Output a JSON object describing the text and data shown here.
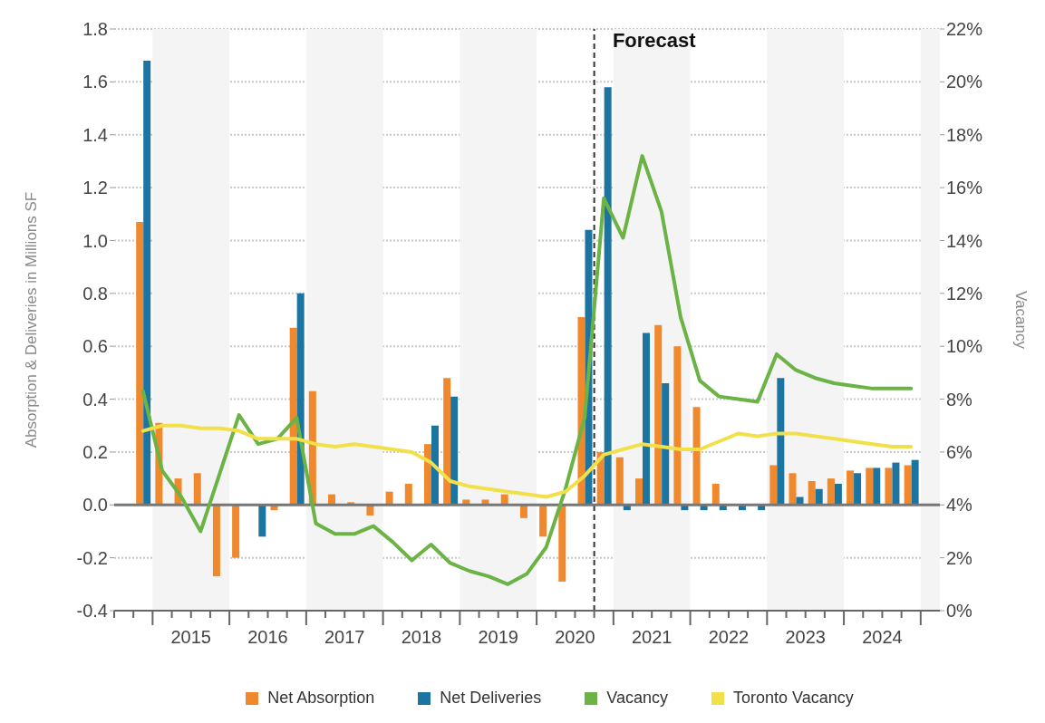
{
  "chart_data": {
    "type": "bar",
    "ylabel": "Absorption & Deliveries in Millions SF",
    "y2label": "Vacancy",
    "x": [
      2014.875,
      2015.125,
      2015.375,
      2015.625,
      2015.875,
      2016.125,
      2016.375,
      2016.625,
      2016.875,
      2017.125,
      2017.375,
      2017.625,
      2017.875,
      2018.125,
      2018.375,
      2018.625,
      2018.875,
      2019.125,
      2019.375,
      2019.625,
      2019.875,
      2020.125,
      2020.375,
      2020.625,
      2020.875,
      2021.125,
      2021.375,
      2021.625,
      2021.875,
      2022.125,
      2022.375,
      2022.625,
      2022.875,
      2023.125,
      2023.375,
      2023.625,
      2023.875,
      2024.125,
      2024.375,
      2024.625,
      2024.875
    ],
    "series": [
      {
        "name": "Net Absorption",
        "color": "#f0892e",
        "values": [
          1.07,
          0.31,
          0.1,
          0.12,
          -0.27,
          -0.2,
          0.0,
          -0.02,
          0.67,
          0.43,
          0.04,
          0.01,
          -0.04,
          0.05,
          0.08,
          0.23,
          0.48,
          0.02,
          0.02,
          0.04,
          -0.05,
          -0.12,
          -0.29,
          0.71,
          0.2,
          0.18,
          0.1,
          0.68,
          0.6,
          0.37,
          0.08,
          0.0,
          0.0,
          0.15,
          0.12,
          0.09,
          0.1,
          0.13,
          0.14,
          0.14,
          0.15
        ]
      },
      {
        "name": "Net Deliveries",
        "color": "#1b75a0",
        "values": [
          1.68,
          0,
          0,
          0,
          0,
          0,
          -0.12,
          0,
          0.8,
          0,
          0,
          0,
          0,
          0,
          0,
          0.3,
          0.41,
          0,
          0,
          0,
          0,
          0,
          0,
          1.04,
          1.58,
          -0.02,
          0.65,
          0.46,
          -0.02,
          -0.02,
          -0.02,
          -0.02,
          -0.02,
          0.48,
          0.03,
          0.06,
          0.08,
          0.12,
          0.14,
          0.16,
          0.17
        ]
      },
      {
        "name": "Vacancy",
        "type": "line",
        "axis": "y2",
        "color": "#6ab344",
        "values": [
          8.3,
          5.3,
          4.3,
          3.0,
          5.2,
          7.4,
          6.3,
          6.5,
          7.3,
          3.3,
          2.9,
          2.9,
          3.2,
          2.6,
          1.9,
          2.5,
          1.8,
          1.5,
          1.3,
          1.0,
          1.4,
          2.4,
          4.6,
          7.3,
          15.6,
          14.1,
          17.2,
          15.1,
          11.1,
          8.7,
          8.1,
          8.0,
          7.9,
          9.7,
          9.1,
          8.8,
          8.6,
          8.5,
          8.4,
          8.4,
          8.4
        ]
      },
      {
        "name": "Toronto Vacancy",
        "type": "line",
        "axis": "y2",
        "color": "#f2e04a",
        "values": [
          6.8,
          7.0,
          7.0,
          6.9,
          6.9,
          6.8,
          6.5,
          6.5,
          6.5,
          6.3,
          6.2,
          6.3,
          6.2,
          6.1,
          6.0,
          5.6,
          4.9,
          4.7,
          4.6,
          4.5,
          4.4,
          4.3,
          4.5,
          5.1,
          5.9,
          6.1,
          6.3,
          6.2,
          6.1,
          6.1,
          6.4,
          6.7,
          6.6,
          6.7,
          6.7,
          6.6,
          6.5,
          6.4,
          6.3,
          6.2,
          6.2
        ]
      }
    ],
    "xlim": [
      2014.5,
      2025.25
    ],
    "xticks": [
      {
        "value": 2014.5,
        "label": null
      },
      {
        "value": 2014.75,
        "label": null
      },
      {
        "value": 2015,
        "label": null
      },
      {
        "value": 2015.25,
        "label": null
      },
      {
        "value": 2015.5,
        "label": "2015"
      },
      {
        "value": 2015.75,
        "label": null
      },
      {
        "value": 2016,
        "label": null
      },
      {
        "value": 2016.25,
        "label": null
      },
      {
        "value": 2016.5,
        "label": "2016"
      },
      {
        "value": 2016.75,
        "label": null
      },
      {
        "value": 2017,
        "label": null
      },
      {
        "value": 2017.25,
        "label": null
      },
      {
        "value": 2017.5,
        "label": "2017"
      },
      {
        "value": 2017.75,
        "label": null
      },
      {
        "value": 2018,
        "label": null
      },
      {
        "value": 2018.25,
        "label": null
      },
      {
        "value": 2018.5,
        "label": "2018"
      },
      {
        "value": 2018.75,
        "label": null
      },
      {
        "value": 2019,
        "label": null
      },
      {
        "value": 2019.25,
        "label": null
      },
      {
        "value": 2019.5,
        "label": "2019"
      },
      {
        "value": 2019.75,
        "label": null
      },
      {
        "value": 2020,
        "label": null
      },
      {
        "value": 2020.25,
        "label": null
      },
      {
        "value": 2020.5,
        "label": "2020"
      },
      {
        "value": 2020.75,
        "label": null
      },
      {
        "value": 2021,
        "label": null
      },
      {
        "value": 2021.25,
        "label": null
      },
      {
        "value": 2021.5,
        "label": "2021"
      },
      {
        "value": 2021.75,
        "label": null
      },
      {
        "value": 2022,
        "label": null
      },
      {
        "value": 2022.25,
        "label": null
      },
      {
        "value": 2022.5,
        "label": "2022"
      },
      {
        "value": 2022.75,
        "label": null
      },
      {
        "value": 2023,
        "label": null
      },
      {
        "value": 2023.25,
        "label": null
      },
      {
        "value": 2023.5,
        "label": "2023"
      },
      {
        "value": 2023.75,
        "label": null
      },
      {
        "value": 2024,
        "label": null
      },
      {
        "value": 2024.25,
        "label": null
      },
      {
        "value": 2024.5,
        "label": "2024"
      },
      {
        "value": 2024.75,
        "label": null
      },
      {
        "value": 2025,
        "label": null
      }
    ],
    "ylim": [
      -0.4,
      1.8
    ],
    "yticks": [
      -0.4,
      -0.2,
      {
        "value": 0,
        "label": "0.0"
      },
      0.2,
      0.4,
      0.6,
      0.8,
      {
        "value": 1,
        "label": "1.0"
      },
      1.2,
      1.4,
      1.6,
      1.8
    ],
    "y2lim": [
      0,
      22
    ],
    "y2ticks": [
      {
        "value": 0,
        "label": "0%"
      },
      {
        "value": 2,
        "label": "2%"
      },
      {
        "value": 4,
        "label": "4%"
      },
      {
        "value": 6,
        "label": "6%"
      },
      {
        "value": 8,
        "label": "8%"
      },
      {
        "value": 10,
        "label": "10%"
      },
      {
        "value": 12,
        "label": "12%"
      },
      {
        "value": 14,
        "label": "14%"
      },
      {
        "value": 16,
        "label": "16%"
      },
      {
        "value": 18,
        "label": "18%"
      },
      {
        "value": 20,
        "label": "20%"
      },
      {
        "value": 22,
        "label": "22%"
      }
    ],
    "ref_lines": [
      {
        "axis": "x",
        "value": 2020.75,
        "label": "Forecast",
        "color": "#333333",
        "line_style": "dashed"
      },
      {
        "axis": "y",
        "value": 0,
        "label": null,
        "color": "#777777",
        "line_style": "solid"
      }
    ],
    "bands": [
      {
        "axis": "x",
        "from": 2015,
        "to": 2016,
        "label": null,
        "color": "#f4f4f4"
      },
      {
        "axis": "x",
        "from": 2017,
        "to": 2018,
        "label": null,
        "color": "#f4f4f4"
      },
      {
        "axis": "x",
        "from": 2019,
        "to": 2020,
        "label": null,
        "color": "#f4f4f4"
      },
      {
        "axis": "x",
        "from": 2021,
        "to": 2022,
        "label": null,
        "color": "#f4f4f4"
      },
      {
        "axis": "x",
        "from": 2023,
        "to": 2024,
        "label": null,
        "color": "#f4f4f4"
      },
      {
        "axis": "x",
        "from": 2025,
        "to": 2025.25,
        "label": null,
        "color": "#f4f4f4"
      }
    ],
    "grid": "y",
    "legend": "bottom",
    "line_style": "solid"
  }
}
